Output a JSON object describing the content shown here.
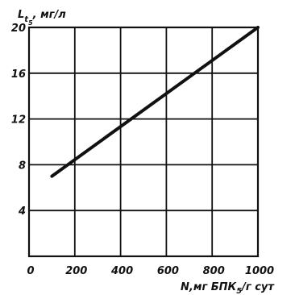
{
  "chart_data": {
    "type": "line",
    "ylabel_main": "L",
    "ylabel_sub": "t",
    "ylabel_subsub": "5",
    "ylabel_tail": ", мг/л",
    "xlabel_main": "N,мг БПК",
    "xlabel_sub": "5",
    "xlabel_tail": "/г сут",
    "xlim": [
      0,
      1000
    ],
    "ylim": [
      0,
      20
    ],
    "x_ticks": [
      0,
      200,
      400,
      600,
      800,
      1000
    ],
    "y_ticks": [
      4,
      8,
      12,
      16,
      20
    ],
    "grid": true,
    "series": [
      {
        "x": [
          100,
          1000
        ],
        "y": [
          7,
          20
        ]
      }
    ]
  }
}
